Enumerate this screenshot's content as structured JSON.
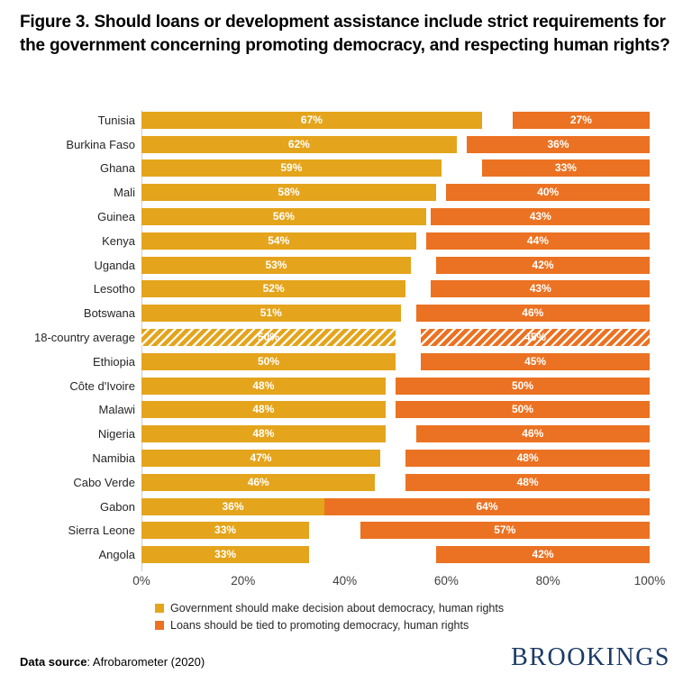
{
  "title": "Figure 3. Should loans or development assistance include strict requirements for the government concerning promoting democracy, and respecting human rights?",
  "chart_data": {
    "type": "bar",
    "orientation": "horizontal",
    "categories": [
      "Tunisia",
      "Burkina Faso",
      "Ghana",
      "Mali",
      "Guinea",
      "Kenya",
      "Uganda",
      "Lesotho",
      "Botswana",
      "18-country average",
      "Ethiopia",
      "Côte d'Ivoire",
      "Malawi",
      "Nigeria",
      "Namibia",
      "Cabo Verde",
      "Gabon",
      "Sierra Leone",
      "Angola"
    ],
    "series": [
      {
        "name": "Government should make decision about democracy, human rights",
        "color": "#E4A41C",
        "alignment": "left",
        "values": [
          67,
          62,
          59,
          58,
          56,
          54,
          53,
          52,
          51,
          50,
          50,
          48,
          48,
          48,
          47,
          46,
          36,
          33,
          33
        ]
      },
      {
        "name": "Loans should be tied to promoting democracy, human rights",
        "color": "#EB7222",
        "alignment": "right",
        "values": [
          27,
          36,
          33,
          40,
          43,
          44,
          42,
          43,
          46,
          45,
          45,
          50,
          50,
          46,
          48,
          48,
          64,
          57,
          42
        ]
      }
    ],
    "highlight_category": "18-country average",
    "highlight_style": "diagonal-hatch",
    "value_label_suffix": "%",
    "x_ticks": [
      "0%",
      "20%",
      "40%",
      "60%",
      "80%",
      "100%"
    ],
    "xlim": [
      0,
      100
    ],
    "grid": false,
    "legend_position": "bottom"
  },
  "footer": {
    "data_source_label": "Data source",
    "data_source_rest": ": Afrobarometer (2020)",
    "logo_text": "BROOKINGS",
    "logo_color": "#1B3A66"
  }
}
